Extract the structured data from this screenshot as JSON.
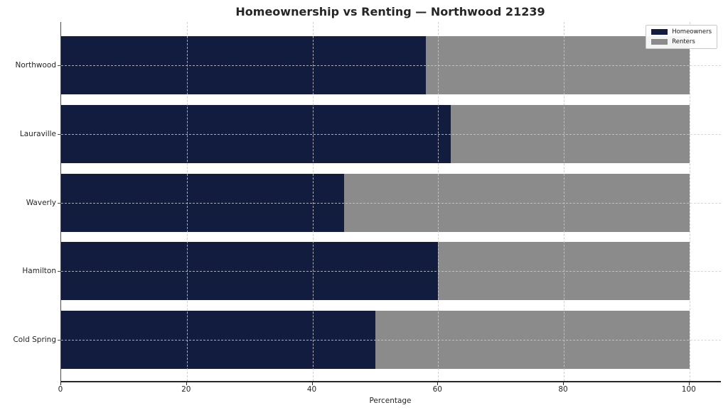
{
  "chart_data": {
    "type": "bar",
    "orientation": "horizontal",
    "stacked": true,
    "title": "Homeownership vs Renting — Northwood 21239",
    "xlabel": "Percentage",
    "ylabel": "",
    "categories": [
      "Northwood",
      "Lauraville",
      "Waverly",
      "Hamilton",
      "Cold Spring"
    ],
    "series": [
      {
        "name": "Homeowners",
        "color": "#121c3e",
        "values": [
          58,
          62,
          45,
          60,
          50
        ]
      },
      {
        "name": "Renters",
        "color": "#8b8b8b",
        "values": [
          42,
          38,
          55,
          40,
          50
        ]
      }
    ],
    "xlim": [
      0,
      105
    ],
    "xticks": [
      0,
      20,
      40,
      60,
      80,
      100
    ],
    "grid": true,
    "legend_position": "upper right"
  }
}
